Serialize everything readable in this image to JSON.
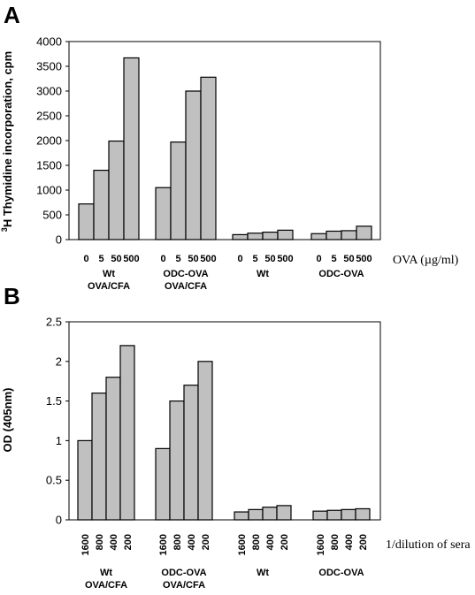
{
  "chart_data": [
    {
      "panel": "A",
      "type": "bar",
      "ylabel_sup": "3",
      "ylabel": "H Thymidine incorporation, cpm",
      "xlabel": "OVA (µg/ml)",
      "ylim": [
        0,
        4000
      ],
      "yticks": [
        "0",
        "500",
        "1000",
        "1500",
        "2000",
        "2500",
        "3000",
        "3500",
        "4000"
      ],
      "grid": false,
      "tick_rotation": 0,
      "groups": [
        {
          "label1": "Wt",
          "label2": "OVA/CFA",
          "categories": [
            "0",
            "5",
            "50",
            "500"
          ],
          "values": [
            720,
            1400,
            1990,
            3670
          ]
        },
        {
          "label1": "ODC-OVA",
          "label2": "OVA/CFA",
          "categories": [
            "0",
            "5",
            "50",
            "500"
          ],
          "values": [
            1050,
            1970,
            3000,
            3280
          ]
        },
        {
          "label1": "Wt",
          "label2": "",
          "categories": [
            "0",
            "5",
            "50",
            "500"
          ],
          "values": [
            100,
            130,
            150,
            190
          ]
        },
        {
          "label1": "ODC-OVA",
          "label2": "",
          "categories": [
            "0",
            "5",
            "50",
            "500"
          ],
          "values": [
            120,
            170,
            180,
            270
          ]
        }
      ]
    },
    {
      "panel": "B",
      "type": "bar",
      "ylabel_sup": "",
      "ylabel": "OD (405nm)",
      "xlabel": "1/dilution of sera",
      "ylim": [
        0,
        2.5
      ],
      "yticks": [
        "0",
        "0.5",
        "1",
        "1.5",
        "2",
        "2.5"
      ],
      "grid": false,
      "tick_rotation": -90,
      "groups": [
        {
          "label1": "Wt",
          "label2": "OVA/CFA",
          "categories": [
            "1600",
            "800",
            "400",
            "200"
          ],
          "values": [
            1.0,
            1.6,
            1.8,
            2.2
          ]
        },
        {
          "label1": "ODC-OVA",
          "label2": "OVA/CFA",
          "categories": [
            "1600",
            "800",
            "400",
            "200"
          ],
          "values": [
            0.9,
            1.5,
            1.7,
            2.0
          ]
        },
        {
          "label1": "Wt",
          "label2": "",
          "categories": [
            "1600",
            "800",
            "400",
            "200"
          ],
          "values": [
            0.1,
            0.13,
            0.16,
            0.18
          ]
        },
        {
          "label1": "ODC-OVA",
          "label2": "",
          "categories": [
            "1600",
            "800",
            "400",
            "200"
          ],
          "values": [
            0.11,
            0.12,
            0.13,
            0.14
          ]
        }
      ]
    }
  ]
}
